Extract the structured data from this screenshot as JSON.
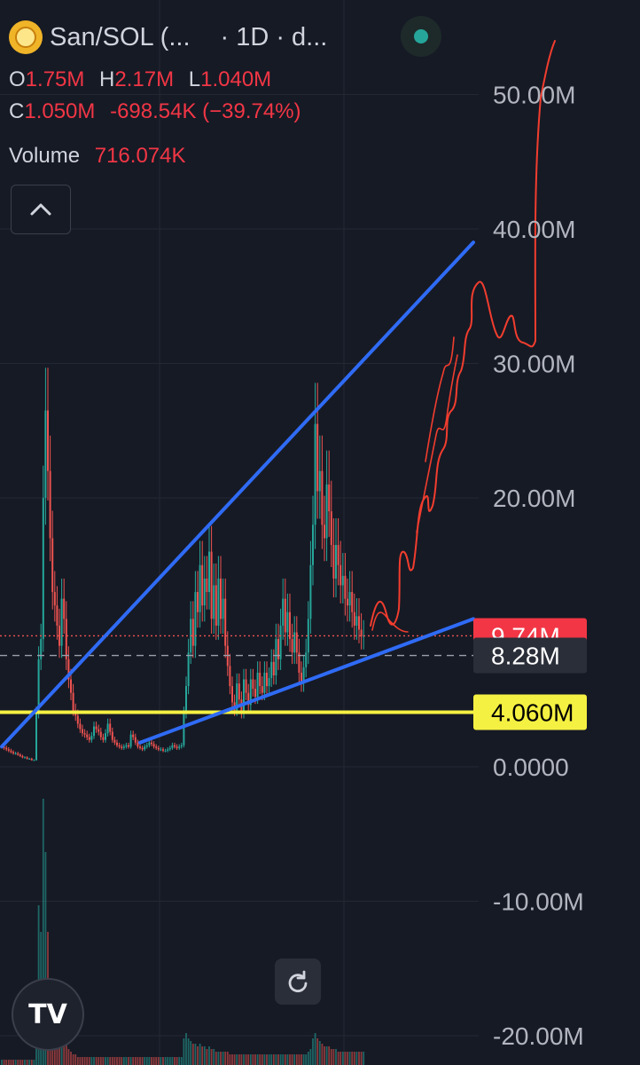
{
  "header": {
    "symbol": "San/SOL (...",
    "interval": "· 1D · d...",
    "open_label": "O",
    "open_value": "1.75M",
    "high_label": "H",
    "high_value": "2.17M",
    "low_label": "L",
    "low_value": "1.040M",
    "close_label": "C",
    "close_value": "1.050M",
    "change": "-698.54K (−39.74%)",
    "volume_label": "Volume",
    "volume_value": "716.074K"
  },
  "colors": {
    "background": "#161a25",
    "up": "#26a69a",
    "down": "#ef5350",
    "trendline": "#2f6bf5",
    "support": "#f5f142",
    "drawing": "#f23d2e"
  },
  "icons": {
    "collapse": "chevron-up-icon",
    "reset": "rotate-icon",
    "logo": "tradingview-logo",
    "live": "live-dot-icon"
  },
  "chart_data": {
    "type": "candlestick",
    "y_axis_ticks": [
      "50.00M",
      "40.00M",
      "30.00M",
      "20.00M",
      "0.0000",
      "-10.00M",
      "-20.00M"
    ],
    "tick_values": [
      50000000,
      40000000,
      30000000,
      20000000,
      0,
      -10000000,
      -20000000
    ],
    "ylim": [
      -21000000,
      56000000
    ],
    "last_price_label": "9.74M",
    "last_price": 9740000,
    "marker_label": "8.28M",
    "marker_price": 8280000,
    "support_label": "4.060M",
    "support_price": 4060000,
    "close_series": [
      1.5,
      1.4,
      1.3,
      1.2,
      1.1,
      1.0,
      1.0,
      0.9,
      0.8,
      0.7,
      0.7,
      0.6,
      0.6,
      0.5,
      0.5,
      4.0,
      8.0,
      9.5,
      20.0,
      26.5,
      22.0,
      17.0,
      13.0,
      12.0,
      10.5,
      9.0,
      12.5,
      11.0,
      8.0,
      6.5,
      5.5,
      4.2,
      3.8,
      3.2,
      2.8,
      2.5,
      2.4,
      2.2,
      2.0,
      2.3,
      3.0,
      2.8,
      2.6,
      2.2,
      2.0,
      2.5,
      3.2,
      2.6,
      2.0,
      1.8,
      1.6,
      1.5,
      1.4,
      1.5,
      1.6,
      1.5,
      2.4,
      2.2,
      1.8,
      1.5,
      1.4,
      1.3,
      1.5,
      1.6,
      1.8,
      1.7,
      1.5,
      1.4,
      1.3,
      1.3,
      1.2,
      1.2,
      1.3,
      1.4,
      1.6,
      1.5,
      1.4,
      1.5,
      1.6,
      4.0,
      6.0,
      8.5,
      11.0,
      9.0,
      13.0,
      11.5,
      15.0,
      12.0,
      14.0,
      13.0,
      16.0,
      11.0,
      13.5,
      10.5,
      14.0,
      11.0,
      12.5,
      9.0,
      7.5,
      6.0,
      4.8,
      4.2,
      6.2,
      5.0,
      4.0,
      6.5,
      5.5,
      4.6,
      6.5,
      5.8,
      5.2,
      7.0,
      6.0,
      5.5,
      7.0,
      6.0,
      6.6,
      7.8,
      6.8,
      9.5,
      8.0,
      10.5,
      12.5,
      10.0,
      11.5,
      9.5,
      8.5,
      10.0,
      8.5,
      7.0,
      6.2,
      7.4,
      8.5,
      11.0,
      15.0,
      18.0,
      25.5,
      20.5,
      22.0,
      18.0,
      17.0,
      21.0,
      19.0,
      16.5,
      14.0,
      16.5,
      15.0,
      13.5,
      14.2,
      12.5,
      12.0,
      13.0,
      11.5,
      10.5,
      11.2,
      10.2,
      9.7,
      9.74
    ],
    "volume_series": [
      0.02,
      0.02,
      0.02,
      0.02,
      0.02,
      0.02,
      0.02,
      0.02,
      0.02,
      0.02,
      0.02,
      0.02,
      0.02,
      0.02,
      0.02,
      0.3,
      0.6,
      0.5,
      1.0,
      0.8,
      0.5,
      0.3,
      0.2,
      0.2,
      0.15,
      0.12,
      0.12,
      0.1,
      0.08,
      0.06,
      0.05,
      0.04,
      0.04,
      0.03,
      0.03,
      0.03,
      0.03,
      0.03,
      0.03,
      0.03,
      0.03,
      0.03,
      0.03,
      0.03,
      0.03,
      0.03,
      0.03,
      0.03,
      0.03,
      0.03,
      0.03,
      0.03,
      0.03,
      0.03,
      0.03,
      0.03,
      0.03,
      0.03,
      0.03,
      0.03,
      0.03,
      0.03,
      0.03,
      0.03,
      0.03,
      0.03,
      0.03,
      0.03,
      0.03,
      0.03,
      0.03,
      0.03,
      0.03,
      0.03,
      0.03,
      0.03,
      0.03,
      0.03,
      0.03,
      0.1,
      0.12,
      0.1,
      0.09,
      0.08,
      0.08,
      0.07,
      0.08,
      0.07,
      0.07,
      0.06,
      0.07,
      0.06,
      0.06,
      0.05,
      0.05,
      0.05,
      0.05,
      0.05,
      0.05,
      0.04,
      0.04,
      0.04,
      0.04,
      0.04,
      0.04,
      0.04,
      0.04,
      0.04,
      0.04,
      0.04,
      0.04,
      0.04,
      0.04,
      0.04,
      0.04,
      0.04,
      0.04,
      0.04,
      0.04,
      0.04,
      0.04,
      0.04,
      0.04,
      0.04,
      0.04,
      0.04,
      0.04,
      0.04,
      0.04,
      0.04,
      0.04,
      0.04,
      0.04,
      0.05,
      0.06,
      0.1,
      0.12,
      0.1,
      0.09,
      0.08,
      0.07,
      0.07,
      0.07,
      0.06,
      0.06,
      0.06,
      0.05,
      0.05,
      0.05,
      0.05,
      0.05,
      0.05,
      0.05,
      0.05,
      0.05,
      0.05,
      0.05,
      0.05
    ],
    "trendlines": [
      {
        "name": "upper",
        "from": [
          0,
          1500000
        ],
        "to": [
          180,
          39000000
        ]
      },
      {
        "name": "lower",
        "from": [
          60,
          1800000
        ],
        "to": [
          180,
          11000000
        ]
      }
    ]
  }
}
